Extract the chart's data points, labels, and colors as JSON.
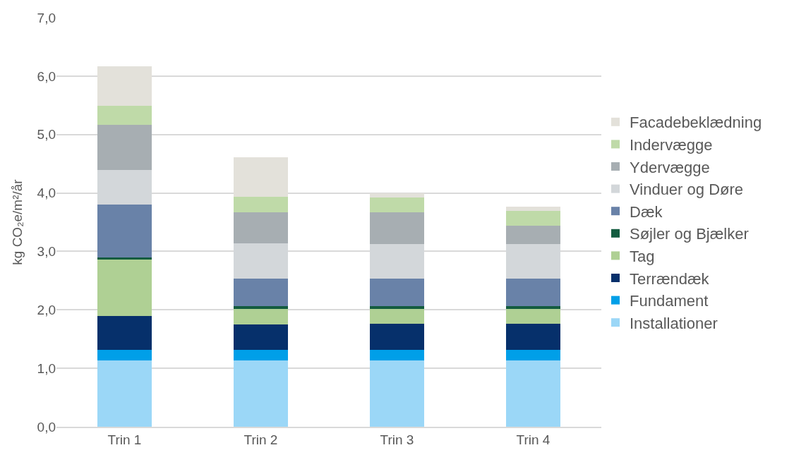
{
  "chart_data": {
    "type": "bar",
    "stacked": true,
    "ylabel": "kg CO₂e/m²/år",
    "categories": [
      "Trin 1",
      "Trin 2",
      "Trin 3",
      "Trin 4"
    ],
    "series": [
      {
        "name": "Installationer",
        "color": "#9bd7f7",
        "values": [
          1.14,
          1.14,
          1.14,
          1.14
        ]
      },
      {
        "name": "Fundament",
        "color": "#009fe8",
        "values": [
          0.17,
          0.17,
          0.17,
          0.17
        ]
      },
      {
        "name": "Terrændæk",
        "color": "#06306b",
        "values": [
          0.59,
          0.44,
          0.45,
          0.45
        ]
      },
      {
        "name": "Tag",
        "color": "#afd094",
        "values": [
          0.96,
          0.27,
          0.26,
          0.26
        ]
      },
      {
        "name": "Søjler og Bjælker",
        "color": "#135c3f",
        "values": [
          0.04,
          0.04,
          0.04,
          0.04
        ]
      },
      {
        "name": "Dæk",
        "color": "#6982a8",
        "values": [
          0.9,
          0.47,
          0.48,
          0.48
        ]
      },
      {
        "name": "Vinduer og Døre",
        "color": "#d3d7da",
        "values": [
          0.59,
          0.61,
          0.59,
          0.59
        ]
      },
      {
        "name": "Ydervægge",
        "color": "#a7aeb2",
        "values": [
          0.78,
          0.53,
          0.54,
          0.31
        ]
      },
      {
        "name": "Indervægge",
        "color": "#bfdaa8",
        "values": [
          0.32,
          0.26,
          0.25,
          0.25
        ]
      },
      {
        "name": "Facadebeklædning",
        "color": "#e3e1da",
        "values": [
          0.68,
          0.68,
          0.08,
          0.07
        ]
      }
    ],
    "ylim": [
      0,
      7
    ],
    "yticks": [
      {
        "value": 0,
        "label": "0,0"
      },
      {
        "value": 1,
        "label": "1,0"
      },
      {
        "value": 2,
        "label": "2,0"
      },
      {
        "value": 3,
        "label": "3,0"
      },
      {
        "value": 4,
        "label": "4,0"
      },
      {
        "value": 5,
        "label": "5,0"
      },
      {
        "value": 6,
        "label": "6,0"
      },
      {
        "value": 7,
        "label": "7,0"
      }
    ],
    "grid": "y",
    "legend": "right"
  }
}
